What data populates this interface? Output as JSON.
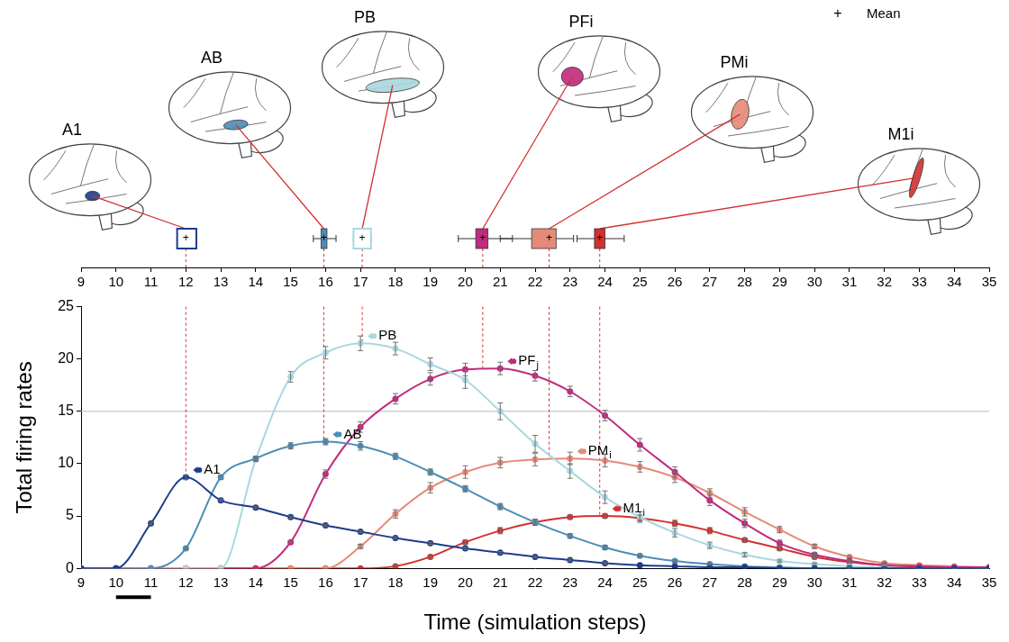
{
  "chart_data": [
    {
      "type": "box",
      "orientation": "horizontal",
      "legend": "top right",
      "mean_symbol": "+",
      "mean_label": "Mean",
      "xlim": [
        9,
        35
      ],
      "xticks": [
        9,
        10,
        11,
        12,
        13,
        14,
        15,
        16,
        17,
        18,
        19,
        20,
        21,
        22,
        23,
        24,
        25,
        26,
        27,
        28,
        29,
        30,
        31,
        32,
        33,
        34,
        35
      ],
      "series": [
        {
          "name": "A1",
          "color": "#1e3c8c",
          "marker": "hollow",
          "mean": 12.0,
          "q1": 11.75,
          "q3": 12.3,
          "whisker_low": 11.75,
          "whisker_high": 12.3
        },
        {
          "name": "AB",
          "color": "#4d8db5",
          "marker": "filled",
          "mean": 15.95,
          "q1": 15.87,
          "q3": 16.04,
          "whisker_low": 15.65,
          "whisker_high": 16.3
        },
        {
          "name": "PB",
          "color": "#a9d7e0",
          "marker": "hollow",
          "mean": 17.05,
          "q1": 16.8,
          "q3": 17.3,
          "whisker_low": 16.8,
          "whisker_high": 17.3
        },
        {
          "name": "PFi",
          "color": "#c12a7e",
          "marker": "filled",
          "mean": 20.5,
          "q1": 20.3,
          "q3": 20.65,
          "whisker_low": 19.8,
          "whisker_high": 21.35
        },
        {
          "name": "PMi",
          "color": "#e48a78",
          "marker": "filled",
          "mean": 22.4,
          "q1": 21.9,
          "q3": 22.6,
          "whisker_low": 21.0,
          "whisker_high": 23.1
        },
        {
          "name": "M1i",
          "color": "#d2302f",
          "marker": "filled",
          "mean": 23.85,
          "q1": 23.7,
          "q3": 24.0,
          "whisker_low": 23.2,
          "whisker_high": 24.55
        }
      ]
    },
    {
      "type": "line",
      "marker": "circle",
      "grid": false,
      "x_label": "Time (simulation steps)",
      "y_label": "Total firing rates",
      "x": [
        9,
        10,
        11,
        12,
        13,
        14,
        15,
        16,
        17,
        18,
        19,
        20,
        21,
        22,
        23,
        24,
        25,
        26,
        27,
        28,
        29,
        30,
        31,
        32,
        33,
        34,
        35
      ],
      "xlim": [
        9,
        35
      ],
      "xticks": [
        9,
        10,
        11,
        12,
        13,
        14,
        15,
        16,
        17,
        18,
        19,
        20,
        21,
        22,
        23,
        24,
        25,
        26,
        27,
        28,
        29,
        30,
        31,
        32,
        33,
        34,
        35
      ],
      "ylim": [
        0,
        25
      ],
      "yticks": [
        0,
        5,
        10,
        15,
        20,
        25
      ],
      "reference_line": 15,
      "scale_bar": [
        10,
        11
      ],
      "series": [
        {
          "name": "A1",
          "color": "#1e3c8c",
          "values": [
            0,
            0,
            4.3,
            8.7,
            6.5,
            5.8,
            4.9,
            4.1,
            3.5,
            2.9,
            2.4,
            1.9,
            1.5,
            1.1,
            0.8,
            0.5,
            0.3,
            0.2,
            0.1,
            0.1,
            0,
            0,
            0,
            0,
            0,
            0,
            0
          ],
          "errors": [
            0,
            0,
            0.1,
            0.2,
            0.1,
            0.1,
            0.1,
            0.1,
            0.1,
            0.1,
            0.1,
            0.1,
            0.1,
            0.1,
            0.1,
            0.1,
            0,
            0,
            0,
            0,
            0,
            0,
            0,
            0,
            0,
            0,
            0
          ]
        },
        {
          "name": "AB",
          "color": "#4d8db5",
          "values": [
            0,
            0,
            0,
            1.9,
            8.7,
            10.5,
            11.7,
            12.1,
            11.7,
            10.7,
            9.2,
            7.6,
            5.9,
            4.4,
            3.1,
            2.0,
            1.2,
            0.7,
            0.4,
            0.2,
            0.1,
            0,
            0,
            0,
            0,
            0,
            0
          ],
          "errors": [
            0,
            0,
            0,
            0.1,
            0.2,
            0.2,
            0.3,
            0.3,
            0.4,
            0.3,
            0.3,
            0.3,
            0.3,
            0.3,
            0.2,
            0.2,
            0.1,
            0.1,
            0.1,
            0,
            0,
            0,
            0,
            0,
            0,
            0,
            0
          ]
        },
        {
          "name": "PB",
          "color": "#a9d7e0",
          "values": [
            0,
            0,
            0,
            0,
            0,
            10.4,
            18.3,
            20.6,
            21.5,
            21.0,
            19.5,
            18.0,
            15.0,
            11.9,
            9.3,
            6.8,
            4.9,
            3.4,
            2.2,
            1.3,
            0.7,
            0.4,
            0.2,
            0.1,
            0,
            0,
            0
          ],
          "errors": [
            0,
            0,
            0,
            0,
            0,
            0.2,
            0.5,
            0.6,
            0.7,
            0.6,
            0.6,
            0.8,
            0.8,
            0.8,
            0.7,
            0.6,
            0.5,
            0.4,
            0.3,
            0.2,
            0.1,
            0.1,
            0.1,
            0,
            0,
            0,
            0
          ]
        },
        {
          "name": "PF",
          "name_sub": "j",
          "color": "#c12a7e",
          "values": [
            0,
            0,
            0,
            0,
            0,
            0,
            2.5,
            9.0,
            13.5,
            16.2,
            18.1,
            19.0,
            19.1,
            18.4,
            16.9,
            14.6,
            11.8,
            9.2,
            6.5,
            4.3,
            2.4,
            1.3,
            0.7,
            0.3,
            0.2,
            0.1,
            0.1
          ],
          "errors": [
            0,
            0,
            0,
            0,
            0,
            0,
            0.1,
            0.4,
            0.5,
            0.5,
            0.6,
            0.6,
            0.6,
            0.5,
            0.5,
            0.5,
            0.6,
            0.5,
            0.5,
            0.4,
            0.3,
            0.2,
            0.1,
            0.1,
            0,
            0,
            0
          ]
        },
        {
          "name": "PM",
          "name_sub": "i",
          "color": "#e48a78",
          "values": [
            0,
            0,
            0,
            0,
            0,
            0,
            0,
            0,
            2.1,
            5.2,
            7.7,
            9.2,
            10.1,
            10.4,
            10.5,
            10.3,
            9.7,
            8.7,
            7.2,
            5.4,
            3.7,
            2.1,
            1.1,
            0.5,
            0.3,
            0.2,
            0.1
          ],
          "errors": [
            0,
            0,
            0,
            0,
            0,
            0,
            0,
            0,
            0.2,
            0.4,
            0.5,
            0.6,
            0.5,
            0.6,
            0.6,
            0.6,
            0.5,
            0.5,
            0.4,
            0.4,
            0.3,
            0.2,
            0.1,
            0.1,
            0,
            0,
            0
          ]
        },
        {
          "name": "M1",
          "name_sub": "i",
          "color": "#d2302f",
          "values": [
            0,
            0,
            0,
            0,
            0,
            0,
            0,
            0,
            0,
            0.2,
            1.1,
            2.5,
            3.6,
            4.4,
            4.9,
            5.0,
            4.8,
            4.3,
            3.6,
            2.7,
            1.9,
            1.1,
            0.6,
            0.3,
            0.1,
            0.1,
            0
          ],
          "errors": [
            0,
            0,
            0,
            0,
            0,
            0,
            0,
            0,
            0,
            0.1,
            0.1,
            0.2,
            0.3,
            0.3,
            0.2,
            0.2,
            0.3,
            0.3,
            0.3,
            0.2,
            0.2,
            0.2,
            0.1,
            0.1,
            0,
            0,
            0
          ]
        }
      ]
    }
  ]
}
